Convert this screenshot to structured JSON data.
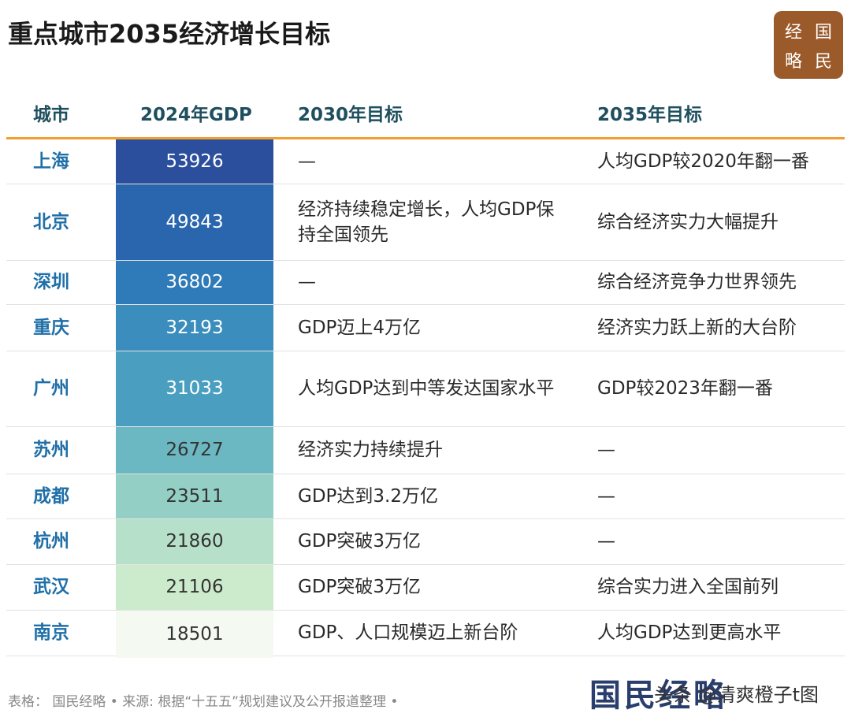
{
  "header": {
    "title": "重点城市2035经济增长目标",
    "logo": [
      "经",
      "国",
      "略",
      "民"
    ]
  },
  "table": {
    "columns": [
      "城市",
      "2024年GDP",
      "2030年目标",
      "2035年目标"
    ],
    "rows": [
      [
        "上海",
        53926,
        "—",
        "人均GDP较2020年翻一番"
      ],
      [
        "北京",
        49843,
        "经济持续稳定增长，人均GDP保持全国领先",
        "综合经济实力大幅提升"
      ],
      [
        "深圳",
        36802,
        "—",
        "综合经济竞争力世界领先"
      ],
      [
        "重庆",
        32193,
        "GDP迈上4万亿",
        "经济实力跃上新的大台阶"
      ],
      [
        "广州",
        31033,
        "人均GDP达到中等发达国家水平",
        "GDP较2023年翻一番"
      ],
      [
        "苏州",
        26727,
        "经济实力持续提升",
        "—"
      ],
      [
        "成都",
        23511,
        "GDP达到3.2万亿",
        "—"
      ],
      [
        "杭州",
        21860,
        "GDP突破3万亿",
        "—"
      ],
      [
        "武汉",
        21106,
        "GDP突破3万亿",
        "综合实力进入全国前列"
      ],
      [
        "南京",
        18501,
        "GDP、人口规模迈上新台阶",
        "人均GDP达到更高水平"
      ]
    ],
    "gdp_colors": [
      "#2b4f9c",
      "#2a66ad",
      "#2f7ab8",
      "#3a8dbd",
      "#4a9fc0",
      "#6cb8c2",
      "#94cfc6",
      "#b6e0c9",
      "#ccebcc",
      "#f4faf2"
    ]
  },
  "footer": {
    "source": "表格：  国民经略 • 来源: 根据“十五五”规划建议及公开报道整理 •",
    "mark": "国民经略",
    "watermark": "头条 @清爽橙子t图"
  }
}
